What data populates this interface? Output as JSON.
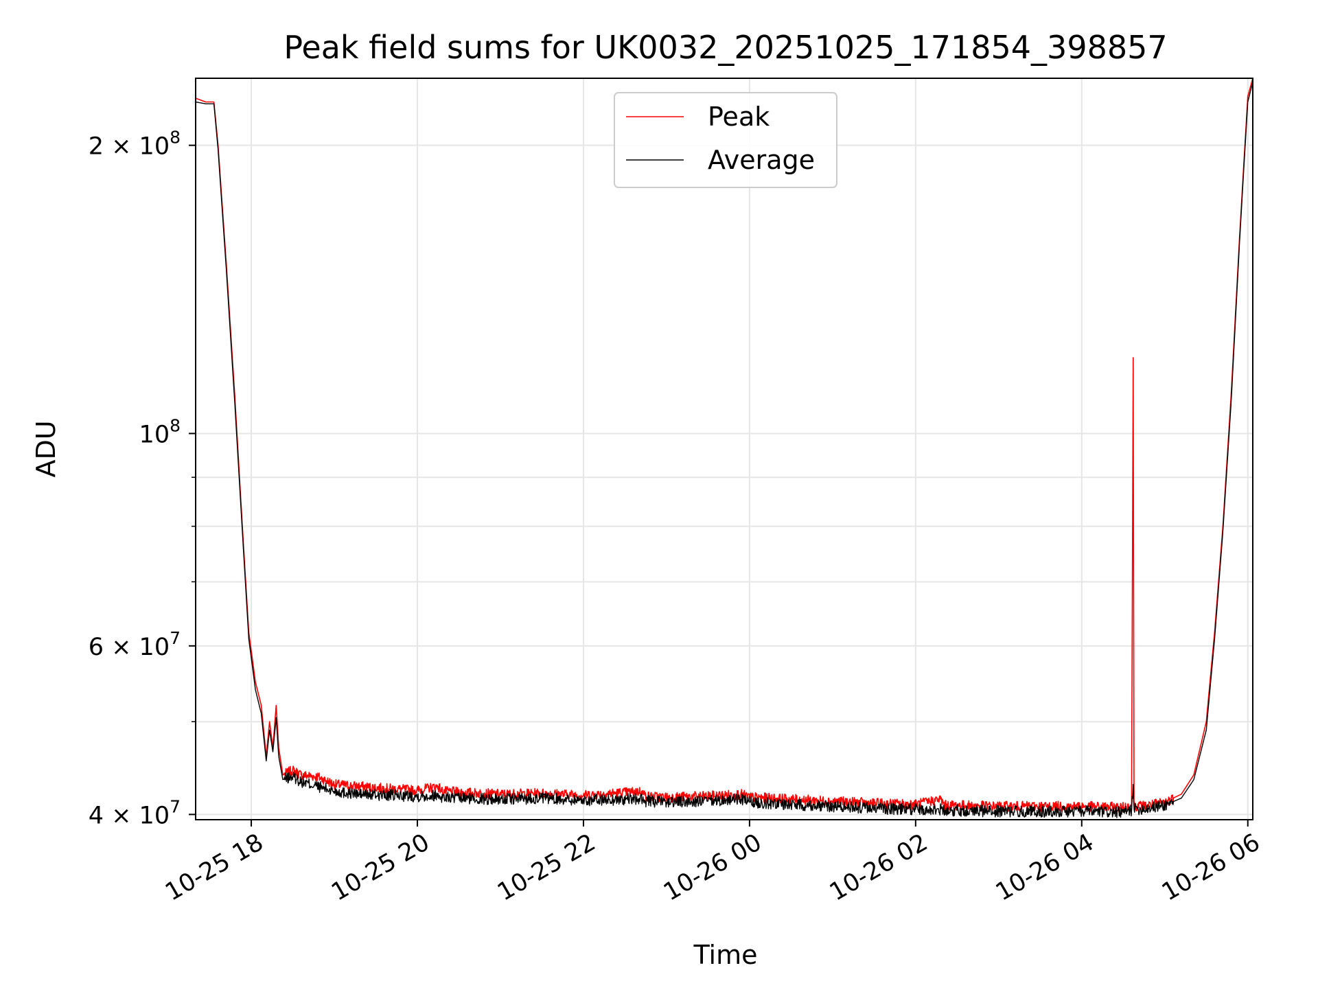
{
  "chart_data": {
    "type": "line",
    "title": "Peak field sums for UK0032_20251025_171854_398857",
    "xlabel": "Time",
    "ylabel": "ADU",
    "yscale": "log",
    "xlim_hours": [
      17.33,
      30.06
    ],
    "ylim": [
      39500000,
      235000000
    ],
    "grid": true,
    "legend_position": "upper-center",
    "x_ticks": [
      {
        "hour": 18,
        "label": "10-25 18"
      },
      {
        "hour": 20,
        "label": "10-25 20"
      },
      {
        "hour": 22,
        "label": "10-25 22"
      },
      {
        "hour": 24,
        "label": "10-26 00"
      },
      {
        "hour": 26,
        "label": "10-26 02"
      },
      {
        "hour": 28,
        "label": "10-26 04"
      },
      {
        "hour": 30,
        "label": "10-26 06"
      }
    ],
    "y_major_ticks": [
      {
        "value": 40000000,
        "base": "4 × 10",
        "exp": "7"
      },
      {
        "value": 60000000,
        "base": "6 × 10",
        "exp": "7"
      },
      {
        "value": 100000000,
        "base": "10",
        "exp": "8"
      },
      {
        "value": 200000000,
        "base": "2 × 10",
        "exp": "8"
      }
    ],
    "y_minor_ticks": [
      50000000,
      70000000,
      80000000,
      90000000
    ],
    "series": [
      {
        "name": "Peak",
        "color": "#ff0000",
        "x_hours": [
          17.33,
          17.45,
          17.55,
          17.6,
          17.7,
          17.8,
          17.9,
          17.97,
          18.05,
          18.12,
          18.18,
          18.22,
          18.26,
          18.3,
          18.33,
          18.38,
          18.5,
          18.6,
          18.8,
          19.0,
          19.3,
          19.6,
          20.0,
          20.25,
          20.3,
          20.5,
          21.0,
          21.5,
          22.0,
          22.7,
          22.75,
          23.0,
          23.5,
          23.9,
          24.0,
          24.5,
          25.0,
          25.5,
          26.0,
          26.3,
          26.35,
          26.5,
          27.0,
          27.5,
          28.0,
          28.5,
          28.6,
          28.62,
          28.63,
          28.64,
          28.8,
          29.0,
          29.2,
          29.35,
          29.5,
          29.6,
          29.7,
          29.8,
          29.9,
          29.95,
          30.0,
          30.06
        ],
        "values": [
          224000000,
          222000000,
          222000000,
          200000000,
          150000000,
          110000000,
          78000000,
          62000000,
          55000000,
          52000000,
          46000000,
          50000000,
          47000000,
          52000000,
          47000000,
          44000000,
          44500000,
          44000000,
          43800000,
          43000000,
          42800000,
          42600000,
          42400000,
          42800000,
          42300000,
          42200000,
          42000000,
          42100000,
          41900000,
          42300000,
          41800000,
          41700000,
          41800000,
          42000000,
          41700000,
          41500000,
          41300000,
          41100000,
          41000000,
          41500000,
          40900000,
          40900000,
          40800000,
          40800000,
          40800000,
          40700000,
          40900000,
          120000000,
          41200000,
          40800000,
          40900000,
          41200000,
          42000000,
          44000000,
          50000000,
          62000000,
          80000000,
          110000000,
          160000000,
          190000000,
          225000000,
          235000000
        ]
      },
      {
        "name": "Average",
        "color": "#000000",
        "x_hours": [
          17.33,
          17.45,
          17.55,
          17.6,
          17.7,
          17.8,
          17.9,
          17.97,
          18.05,
          18.12,
          18.18,
          18.22,
          18.26,
          18.3,
          18.33,
          18.38,
          18.5,
          18.6,
          18.8,
          19.0,
          19.3,
          19.6,
          20.0,
          20.25,
          20.3,
          20.5,
          21.0,
          21.5,
          22.0,
          22.7,
          22.75,
          23.0,
          23.5,
          23.9,
          24.0,
          24.5,
          25.0,
          25.5,
          26.0,
          26.3,
          26.35,
          26.5,
          27.0,
          27.5,
          28.0,
          28.5,
          28.6,
          28.62,
          28.63,
          28.64,
          28.8,
          29.0,
          29.2,
          29.35,
          29.5,
          29.6,
          29.7,
          29.8,
          29.9,
          29.95,
          30.0,
          30.06
        ],
        "values": [
          222000000,
          221000000,
          221000000,
          198000000,
          148000000,
          108000000,
          77000000,
          61000000,
          54000000,
          51000000,
          45500000,
          49000000,
          46500000,
          50500000,
          46000000,
          43500000,
          43800000,
          43300000,
          42800000,
          42300000,
          42000000,
          41900000,
          41800000,
          41900000,
          41700000,
          41600000,
          41500000,
          41600000,
          41400000,
          41500000,
          41300000,
          41200000,
          41300000,
          41500000,
          41200000,
          41000000,
          40800000,
          40600000,
          40500000,
          40500000,
          40400000,
          40400000,
          40300000,
          40300000,
          40300000,
          40200000,
          40400000,
          43000000,
          40700000,
          40500000,
          40600000,
          40900000,
          41600000,
          43500000,
          49000000,
          61000000,
          79000000,
          108000000,
          158000000,
          188000000,
          222000000,
          233000000
        ]
      }
    ]
  }
}
